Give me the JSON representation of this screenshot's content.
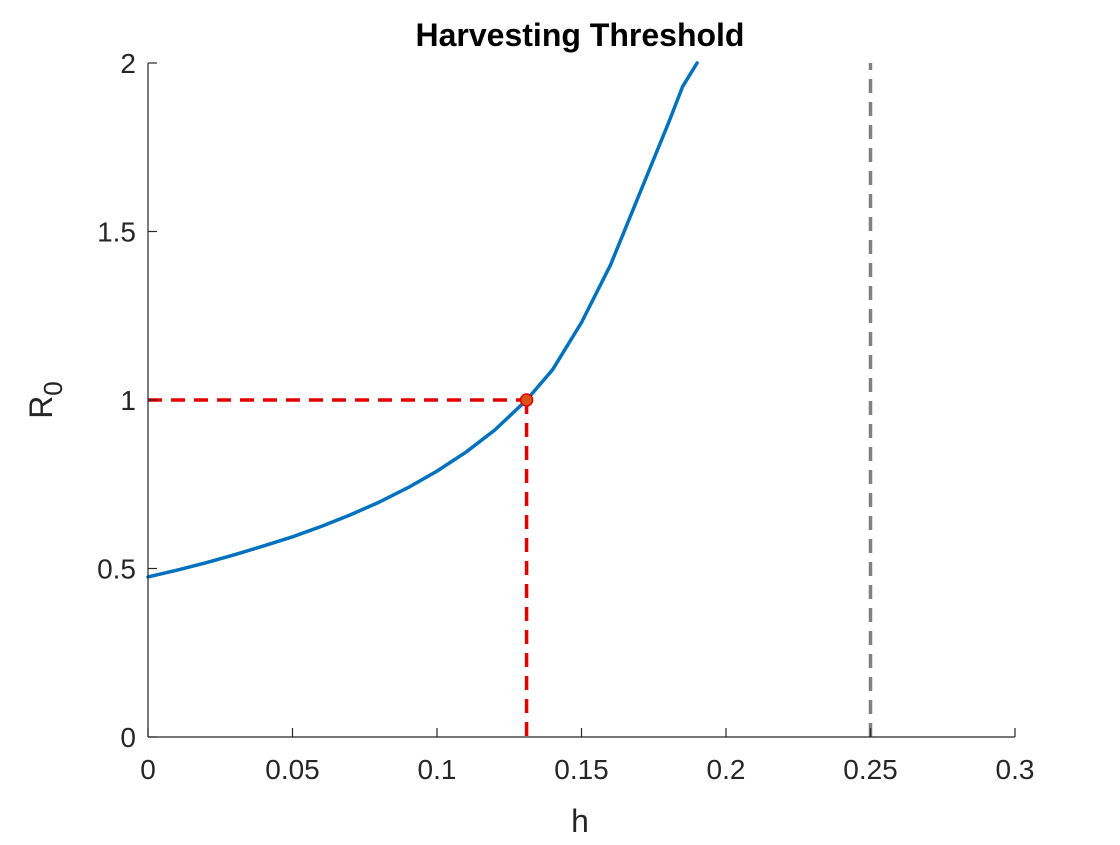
{
  "chart_data": {
    "type": "line",
    "title": "Harvesting Threshold",
    "xlabel": "h",
    "ylabel": {
      "base": "R",
      "subscript": "0"
    },
    "xlim": [
      0,
      0.3
    ],
    "ylim": [
      0,
      2
    ],
    "xticks": [
      0,
      0.05,
      0.1,
      0.15,
      0.2,
      0.25,
      0.3
    ],
    "xtick_labels": [
      "0",
      "0.05",
      "0.1",
      "0.15",
      "0.2",
      "0.25",
      "0.3"
    ],
    "yticks": [
      0,
      0.5,
      1,
      1.5,
      2
    ],
    "ytick_labels": [
      "0",
      "0.5",
      "1",
      "1.5",
      "2"
    ],
    "grid": false,
    "colors": {
      "curve": "#0072BD",
      "threshold": "#E50000",
      "point": "#D95319",
      "asymptote": "#808080",
      "axis": "#262626"
    },
    "series": [
      {
        "x": [
          0,
          0.01,
          0.02,
          0.03,
          0.04,
          0.05,
          0.06,
          0.07,
          0.08,
          0.09,
          0.1,
          0.11,
          0.12,
          0.131,
          0.14,
          0.15,
          0.16,
          0.17,
          0.18,
          0.185,
          0.19
        ],
        "y": [
          0.475,
          0.495,
          0.517,
          0.541,
          0.567,
          0.594,
          0.625,
          0.659,
          0.697,
          0.74,
          0.789,
          0.845,
          0.911,
          1.0,
          1.09,
          1.23,
          1.4,
          1.61,
          1.82,
          1.93,
          2.0
        ]
      }
    ],
    "threshold_point": {
      "x": 0.131,
      "y": 1
    },
    "asymptote_x": 0.25
  }
}
